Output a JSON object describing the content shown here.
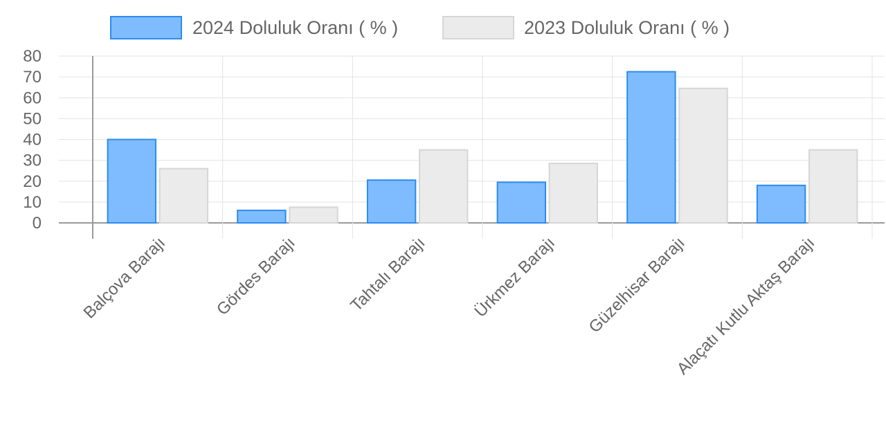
{
  "chart_data": {
    "type": "bar",
    "categories": [
      "Balçova Barajı",
      "Gördes Barajı",
      "Tahtalı Barajı",
      "Ürkmez Barajı",
      "Güzelhisar Barajı",
      "Alaçatı Kutlu Aktaş Barajı"
    ],
    "series": [
      {
        "name": "2024 Doluluk Oranı ( % )",
        "values": [
          40,
          6,
          20.5,
          19.5,
          72.5,
          18
        ],
        "fill": "#7fbcff",
        "stroke": "#2b8cf0"
      },
      {
        "name": "2023 Doluluk Oranı ( % )",
        "values": [
          26,
          7.5,
          35,
          28.5,
          64.5,
          35
        ],
        "fill": "#ebebeb",
        "stroke": "#d6d6d6"
      }
    ],
    "ylim": [
      0,
      80
    ],
    "yticks": [
      "0",
      "10",
      "20",
      "30",
      "40",
      "50",
      "60",
      "70",
      "80"
    ],
    "grid": true,
    "legend_position": "top"
  }
}
